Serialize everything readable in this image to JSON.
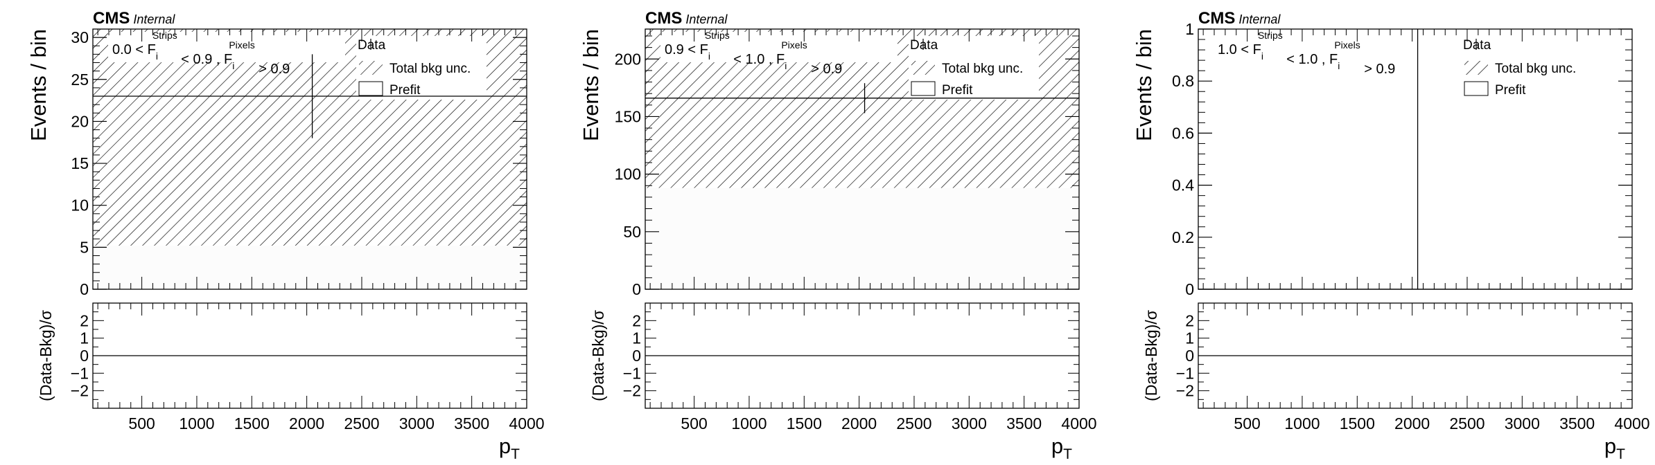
{
  "experiment_label": "CMS",
  "status_label": "Internal",
  "colors": {
    "axis": "#000000",
    "hatch": "#000000",
    "prefit_fill": "#fcfcfc",
    "data": "#000000"
  },
  "legend": {
    "data_label": "Data",
    "unc_label": "Total bkg unc.",
    "prefit_label": "Prefit"
  },
  "chart_data": [
    {
      "type": "bar",
      "region_label": {
        "lo": "0.0",
        "mid": "0.9",
        "strips_sup": "Strips",
        "pixels_sup": "Pixels",
        "sub": "i",
        "cut": "0.9"
      },
      "ylabel": "Events / bin",
      "ratio_ylabel": "(Data-Bkg)/σ",
      "xlabel": "p",
      "xlabel_sub": "T",
      "xlim": [
        55,
        4000
      ],
      "ylim": [
        0,
        31
      ],
      "yticks": [
        0,
        5,
        10,
        15,
        20,
        25,
        30
      ],
      "ytick_labels": [
        "0",
        "5",
        "10",
        "15",
        "20",
        "25",
        "30"
      ],
      "xticks": [
        500,
        1000,
        1500,
        2000,
        2500,
        3000,
        3500,
        4000
      ],
      "xtick_labels": [
        "500",
        "1000",
        "1500",
        "2000",
        "2500",
        "3000",
        "3500",
        "4000"
      ],
      "prefit": 5.2,
      "unc_band": [
        5.2,
        31
      ],
      "data_point": {
        "x": 2050,
        "y": 23,
        "err": 5
      },
      "ratio_ylim": [
        -3,
        3
      ],
      "ratio_yticks": [
        -2,
        -1,
        0,
        1,
        2
      ],
      "ratio_ytick_labels": [
        "−2",
        "−1",
        "0",
        "1",
        "2"
      ],
      "ratio_line": 0
    },
    {
      "type": "bar",
      "region_label": {
        "lo": "0.9",
        "mid": "1.0",
        "strips_sup": "Strips",
        "pixels_sup": "Pixels",
        "sub": "i",
        "cut": "0.9"
      },
      "ylabel": "Events / bin",
      "ratio_ylabel": "(Data-Bkg)/σ",
      "xlabel": "p",
      "xlabel_sub": "T",
      "xlim": [
        55,
        4000
      ],
      "ylim": [
        0,
        226
      ],
      "yticks": [
        0,
        50,
        100,
        150,
        200
      ],
      "ytick_labels": [
        "0",
        "50",
        "100",
        "150",
        "200"
      ],
      "xticks": [
        500,
        1000,
        1500,
        2000,
        2500,
        3000,
        3500,
        4000
      ],
      "xtick_labels": [
        "500",
        "1000",
        "1500",
        "2000",
        "2500",
        "3000",
        "3500",
        "4000"
      ],
      "prefit": 88,
      "unc_band": [
        88,
        226
      ],
      "data_point": {
        "x": 2050,
        "y": 166,
        "err": 13
      },
      "ratio_ylim": [
        -3,
        3
      ],
      "ratio_yticks": [
        -2,
        -1,
        0,
        1,
        2
      ],
      "ratio_ytick_labels": [
        "−2",
        "−1",
        "0",
        "1",
        "2"
      ],
      "ratio_line": 0
    },
    {
      "type": "bar",
      "region_label": {
        "lo": "1.0",
        "mid": "1.0",
        "strips_sup": "Strips",
        "pixels_sup": "Pixels",
        "sub": "i",
        "cut": "0.9"
      },
      "ylabel": "Events / bin",
      "ratio_ylabel": "(Data-Bkg)/σ",
      "xlabel": "p",
      "xlabel_sub": "T",
      "xlim": [
        55,
        4000
      ],
      "ylim": [
        0,
        1
      ],
      "yticks": [
        0,
        0.2,
        0.4,
        0.6,
        0.8,
        1
      ],
      "ytick_labels": [
        "0",
        "0.2",
        "0.4",
        "0.6",
        "0.8",
        "1"
      ],
      "xticks": [
        500,
        1000,
        1500,
        2000,
        2500,
        3000,
        3500,
        4000
      ],
      "xtick_labels": [
        "500",
        "1000",
        "1500",
        "2000",
        "2500",
        "3000",
        "3500",
        "4000"
      ],
      "prefit": 0,
      "unc_band": [
        0,
        0
      ],
      "data_point": {
        "x": 2050,
        "y": 0,
        "err": 1
      },
      "ratio_ylim": [
        -3,
        3
      ],
      "ratio_yticks": [
        -2,
        -1,
        0,
        1,
        2
      ],
      "ratio_ytick_labels": [
        "−2",
        "−1",
        "0",
        "1",
        "2"
      ],
      "ratio_line": 0
    }
  ]
}
